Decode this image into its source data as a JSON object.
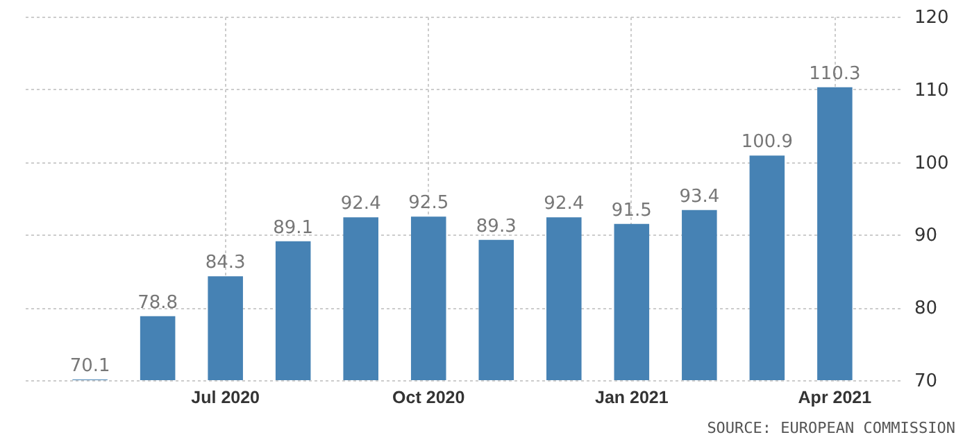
{
  "chart_data": {
    "type": "bar",
    "categories": [
      null,
      null,
      "Jul 2020",
      null,
      null,
      "Oct 2020",
      null,
      null,
      "Jan 2021",
      null,
      null,
      "Apr 2021"
    ],
    "values": [
      70.1,
      78.8,
      84.3,
      89.1,
      92.4,
      92.5,
      89.3,
      92.4,
      91.5,
      93.4,
      100.9,
      110.3
    ],
    "color": "#4682b4",
    "ylim": [
      70,
      120
    ],
    "yticks": [
      70,
      80,
      90,
      100,
      110,
      120
    ],
    "grid": true,
    "data_labels": true,
    "annotations": [
      "SOURCE: EUROPEAN COMMISSION"
    ]
  }
}
